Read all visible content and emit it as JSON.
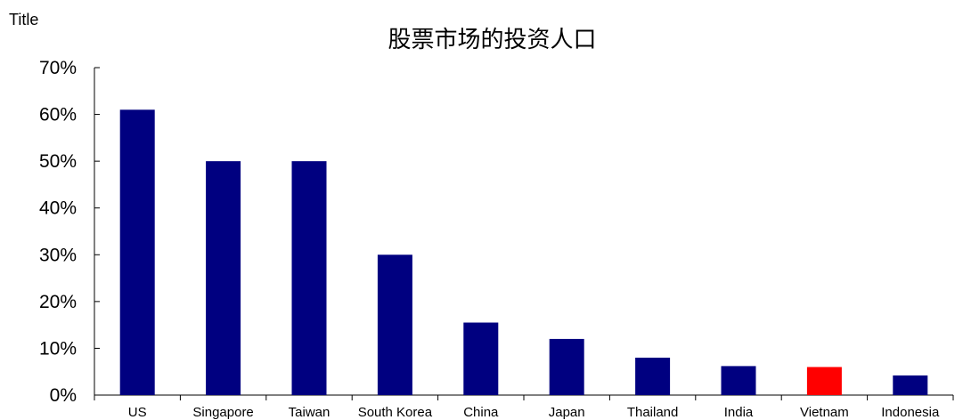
{
  "corner_label": "Title",
  "chart_data": {
    "type": "bar",
    "title": "股票市场的投资人口",
    "categories": [
      "US",
      "Singapore",
      "Taiwan",
      "South Korea",
      "China",
      "Japan",
      "Thailand",
      "India",
      "Vietnam",
      "Indonesia"
    ],
    "values": [
      61,
      50,
      50,
      30,
      15.5,
      12,
      8,
      6.2,
      6,
      4.2
    ],
    "highlight": "Vietnam",
    "xlabel": "",
    "ylabel": "",
    "ylim": [
      0,
      70
    ],
    "yticks": [
      0,
      10,
      20,
      30,
      40,
      50,
      60,
      70
    ],
    "ytick_format": "percent",
    "grid": false,
    "colors": {
      "bar": "#000080",
      "highlight": "#ff0000",
      "axis": "#000000"
    }
  }
}
